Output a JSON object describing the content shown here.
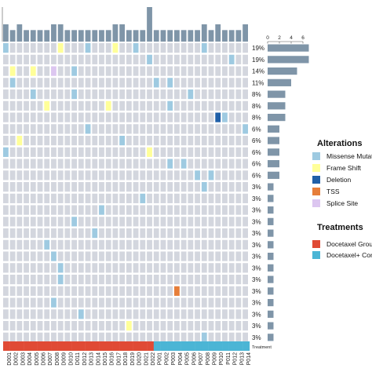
{
  "chart_data": {
    "type": "heatmap",
    "samples": [
      "D001",
      "D002",
      "D003",
      "D004",
      "D005",
      "D006",
      "D007",
      "D008",
      "D009",
      "D010",
      "D011",
      "D012",
      "D013",
      "D014",
      "D015",
      "D016",
      "D017",
      "D018",
      "D019",
      "D020",
      "D021",
      "D022",
      "P001",
      "P002",
      "P003",
      "P004",
      "P005",
      "P006",
      "P007",
      "P008",
      "P009",
      "P010",
      "P011",
      "P012",
      "P013",
      "P014"
    ],
    "row_percentages": [
      "19%",
      "19%",
      "14%",
      "11%",
      "8%",
      "8%",
      "8%",
      "6%",
      "6%",
      "6%",
      "6%",
      "6%",
      "3%",
      "3%",
      "3%",
      "3%",
      "3%",
      "3%",
      "3%",
      "3%",
      "3%",
      "3%",
      "3%",
      "3%",
      "3%",
      "3%"
    ],
    "gene_counts": [
      7,
      7,
      5,
      4,
      3,
      3,
      3,
      2,
      2,
      2,
      2,
      2,
      1,
      1,
      1,
      1,
      1,
      1,
      1,
      1,
      1,
      1,
      1,
      1,
      1,
      1
    ],
    "gene_axis_ticks": [
      "0",
      "2",
      "4",
      "6"
    ],
    "sample_totals": [
      3,
      2,
      3,
      2,
      2,
      2,
      2,
      3,
      3,
      2,
      2,
      2,
      2,
      2,
      2,
      2,
      3,
      3,
      2,
      2,
      2,
      6,
      2,
      2,
      2,
      2,
      2,
      2,
      2,
      3,
      2,
      3,
      2,
      2,
      2,
      3
    ],
    "alterations": [
      {
        "row": 0,
        "col": 0,
        "type": "missense"
      },
      {
        "row": 0,
        "col": 8,
        "type": "frameshift"
      },
      {
        "row": 0,
        "col": 12,
        "type": "missense"
      },
      {
        "row": 0,
        "col": 16,
        "type": "frameshift"
      },
      {
        "row": 0,
        "col": 19,
        "type": "missense"
      },
      {
        "row": 0,
        "col": 29,
        "type": "missense"
      },
      {
        "row": 1,
        "col": 21,
        "type": "missense"
      },
      {
        "row": 1,
        "col": 33,
        "type": "missense"
      },
      {
        "row": 2,
        "col": 1,
        "type": "frameshift"
      },
      {
        "row": 2,
        "col": 4,
        "type": "frameshift"
      },
      {
        "row": 2,
        "col": 7,
        "type": "splice"
      },
      {
        "row": 2,
        "col": 10,
        "type": "missense"
      },
      {
        "row": 3,
        "col": 1,
        "type": "missense"
      },
      {
        "row": 3,
        "col": 22,
        "type": "missense"
      },
      {
        "row": 3,
        "col": 24,
        "type": "missense"
      },
      {
        "row": 4,
        "col": 4,
        "type": "missense"
      },
      {
        "row": 4,
        "col": 10,
        "type": "missense"
      },
      {
        "row": 4,
        "col": 27,
        "type": "missense"
      },
      {
        "row": 5,
        "col": 6,
        "type": "frameshift"
      },
      {
        "row": 5,
        "col": 15,
        "type": "frameshift"
      },
      {
        "row": 5,
        "col": 24,
        "type": "missense"
      },
      {
        "row": 6,
        "col": 31,
        "type": "deletion"
      },
      {
        "row": 6,
        "col": 32,
        "type": "missense"
      },
      {
        "row": 7,
        "col": 12,
        "type": "missense"
      },
      {
        "row": 7,
        "col": 35,
        "type": "missense"
      },
      {
        "row": 8,
        "col": 2,
        "type": "frameshift"
      },
      {
        "row": 8,
        "col": 17,
        "type": "missense"
      },
      {
        "row": 9,
        "col": 0,
        "type": "missense"
      },
      {
        "row": 9,
        "col": 21,
        "type": "frameshift"
      },
      {
        "row": 10,
        "col": 24,
        "type": "missense"
      },
      {
        "row": 10,
        "col": 26,
        "type": "missense"
      },
      {
        "row": 11,
        "col": 28,
        "type": "missense"
      },
      {
        "row": 11,
        "col": 30,
        "type": "missense"
      },
      {
        "row": 12,
        "col": 29,
        "type": "missense"
      },
      {
        "row": 13,
        "col": 20,
        "type": "missense"
      },
      {
        "row": 14,
        "col": 14,
        "type": "missense"
      },
      {
        "row": 15,
        "col": 10,
        "type": "missense"
      },
      {
        "row": 16,
        "col": 13,
        "type": "missense"
      },
      {
        "row": 17,
        "col": 6,
        "type": "missense"
      },
      {
        "row": 18,
        "col": 7,
        "type": "missense"
      },
      {
        "row": 19,
        "col": 8,
        "type": "missense"
      },
      {
        "row": 20,
        "col": 8,
        "type": "missense"
      },
      {
        "row": 21,
        "col": 25,
        "type": "tss"
      },
      {
        "row": 22,
        "col": 7,
        "type": "missense"
      },
      {
        "row": 23,
        "col": 11,
        "type": "missense"
      },
      {
        "row": 24,
        "col": 18,
        "type": "frameshift"
      },
      {
        "row": 25,
        "col": 29,
        "type": "missense"
      }
    ],
    "treatment_groups": [
      "docetaxel",
      "docetaxel",
      "docetaxel",
      "docetaxel",
      "docetaxel",
      "docetaxel",
      "docetaxel",
      "docetaxel",
      "docetaxel",
      "docetaxel",
      "docetaxel",
      "docetaxel",
      "docetaxel",
      "docetaxel",
      "docetaxel",
      "docetaxel",
      "docetaxel",
      "docetaxel",
      "docetaxel",
      "docetaxel",
      "docetaxel",
      "docetaxel",
      "combo",
      "combo",
      "combo",
      "combo",
      "combo",
      "combo",
      "combo",
      "combo",
      "combo",
      "combo",
      "combo",
      "combo",
      "combo",
      "combo"
    ],
    "treatment_row_label": "Treatment",
    "legend_alterations": {
      "title": "Alterations",
      "items": [
        {
          "key": "missense",
          "label": "Missense Mutation",
          "color": "#9ecae1"
        },
        {
          "key": "frameshift",
          "label": "Frame Shift",
          "color": "#ffff99"
        },
        {
          "key": "deletion",
          "label": "Deletion",
          "color": "#1f5fa8"
        },
        {
          "key": "tss",
          "label": "TSS",
          "color": "#e67e3a"
        },
        {
          "key": "splice",
          "label": "Splice Site",
          "color": "#dcc6f0"
        }
      ]
    },
    "legend_treatments": {
      "title": "Treatments",
      "items": [
        {
          "key": "docetaxel",
          "label": "Docetaxel Group",
          "color": "#e04a35"
        },
        {
          "key": "combo",
          "label": "Docetaxel+ Combination",
          "color": "#4bb5d5"
        }
      ]
    },
    "colors": {
      "empty_cell": "#d3d6de",
      "bar": "#7f95a8"
    }
  }
}
